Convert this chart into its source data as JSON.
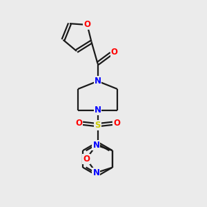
{
  "background_color": "#ebebeb",
  "bond_color": "#1a1a1a",
  "atom_N": "#0000ff",
  "atom_O": "#ff0000",
  "atom_S": "#cccc00",
  "figsize": [
    3.0,
    3.0
  ],
  "dpi": 100,
  "xlim": [
    0,
    10
  ],
  "ylim": [
    0,
    10
  ],
  "lw": 1.6,
  "fs": 8.5
}
